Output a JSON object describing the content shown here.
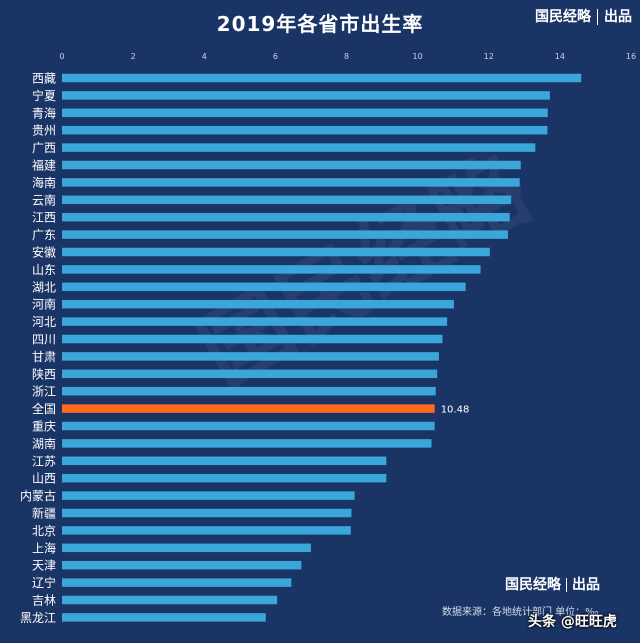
{
  "chart_data": {
    "type": "bar",
    "orientation": "horizontal",
    "title": "2019年各省市出生率",
    "categories": [
      "西藏",
      "宁夏",
      "青海",
      "贵州",
      "广西",
      "福建",
      "海南",
      "云南",
      "江西",
      "广东",
      "安徽",
      "山东",
      "湖北",
      "河南",
      "河北",
      "四川",
      "甘肃",
      "陕西",
      "浙江",
      "全国",
      "重庆",
      "湖南",
      "江苏",
      "山西",
      "内蒙古",
      "新疆",
      "北京",
      "上海",
      "天津",
      "辽宁",
      "吉林",
      "黑龙江"
    ],
    "values": [
      14.6,
      13.72,
      13.66,
      13.65,
      13.31,
      12.9,
      12.87,
      12.63,
      12.59,
      12.54,
      12.03,
      11.77,
      11.35,
      11.02,
      10.83,
      10.7,
      10.6,
      10.55,
      10.51,
      10.48,
      10.48,
      10.39,
      9.12,
      9.12,
      8.23,
      8.14,
      8.12,
      7.0,
      6.73,
      6.45,
      6.05,
      5.73
    ],
    "highlight_category": "全国",
    "highlight_label": "10.48",
    "xlim": [
      0,
      16
    ],
    "xticks": [
      0,
      2,
      4,
      6,
      8,
      10,
      12,
      14,
      16
    ],
    "xtick_position": "top",
    "grid": false,
    "colors": {
      "background": "#1a3466",
      "bar": "#3aa6da",
      "highlight": "#ff6a1a",
      "text": "#ffffff",
      "tick": "#c8d2e6"
    }
  },
  "brand": {
    "name": "国民经略",
    "suffix": "出品"
  },
  "source_text": "数据来源：各地统计部门 单位：‰",
  "footer_logo": "头条 @旺旺虎",
  "watermark_text": "国民经略"
}
